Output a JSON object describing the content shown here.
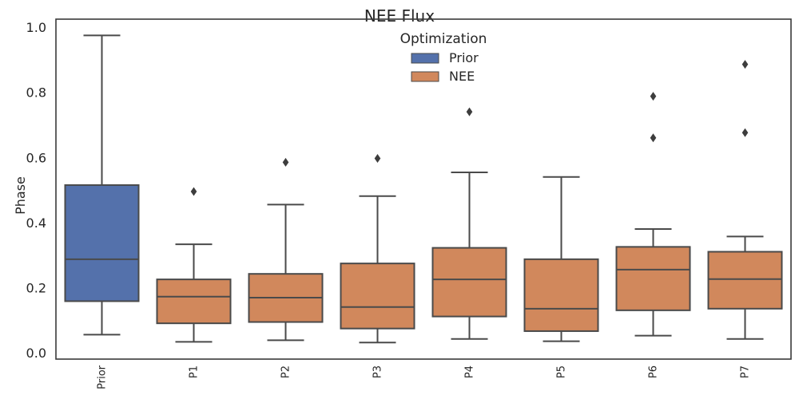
{
  "chart_data": {
    "type": "box",
    "title": "NEE Flux",
    "ylabel": "Phase",
    "xlabel": "",
    "ylim": [
      -0.02,
      1.025
    ],
    "yticks": [
      0.0,
      0.2,
      0.4,
      0.6,
      0.8,
      1.0
    ],
    "ytick_labels": [
      "0.0",
      "0.2",
      "0.4",
      "0.6",
      "0.8",
      "1.0"
    ],
    "categories": [
      "Prior",
      "P1",
      "P2",
      "P3",
      "P4",
      "P5",
      "P6",
      "P7"
    ],
    "legend": {
      "title": "Optimization",
      "placement": "top-center",
      "entries": [
        {
          "label": "Prior",
          "color": "#5471ab"
        },
        {
          "label": "NEE",
          "color": "#d1885c"
        }
      ]
    },
    "boxes": [
      {
        "category": "Prior",
        "group": "Prior",
        "min": 0.055,
        "q1": 0.158,
        "median": 0.287,
        "q3": 0.515,
        "max": 0.975,
        "outliers": []
      },
      {
        "category": "P1",
        "group": "NEE",
        "min": 0.033,
        "q1": 0.09,
        "median": 0.172,
        "q3": 0.225,
        "max": 0.333,
        "outliers": [
          0.495
        ]
      },
      {
        "category": "P2",
        "group": "NEE",
        "min": 0.038,
        "q1": 0.094,
        "median": 0.169,
        "q3": 0.242,
        "max": 0.455,
        "outliers": [
          0.585
        ]
      },
      {
        "category": "P3",
        "group": "NEE",
        "min": 0.031,
        "q1": 0.074,
        "median": 0.14,
        "q3": 0.274,
        "max": 0.481,
        "outliers": [
          0.597
        ]
      },
      {
        "category": "P4",
        "group": "NEE",
        "min": 0.042,
        "q1": 0.111,
        "median": 0.225,
        "q3": 0.322,
        "max": 0.554,
        "outliers": [
          0.74
        ]
      },
      {
        "category": "P5",
        "group": "NEE",
        "min": 0.035,
        "q1": 0.066,
        "median": 0.135,
        "q3": 0.287,
        "max": 0.54,
        "outliers": []
      },
      {
        "category": "P6",
        "group": "NEE",
        "min": 0.052,
        "q1": 0.13,
        "median": 0.255,
        "q3": 0.325,
        "max": 0.38,
        "outliers": [
          0.66,
          0.788
        ]
      },
      {
        "category": "P7",
        "group": "NEE",
        "min": 0.042,
        "q1": 0.135,
        "median": 0.226,
        "q3": 0.31,
        "max": 0.357,
        "outliers": [
          0.676,
          0.886
        ]
      }
    ]
  }
}
